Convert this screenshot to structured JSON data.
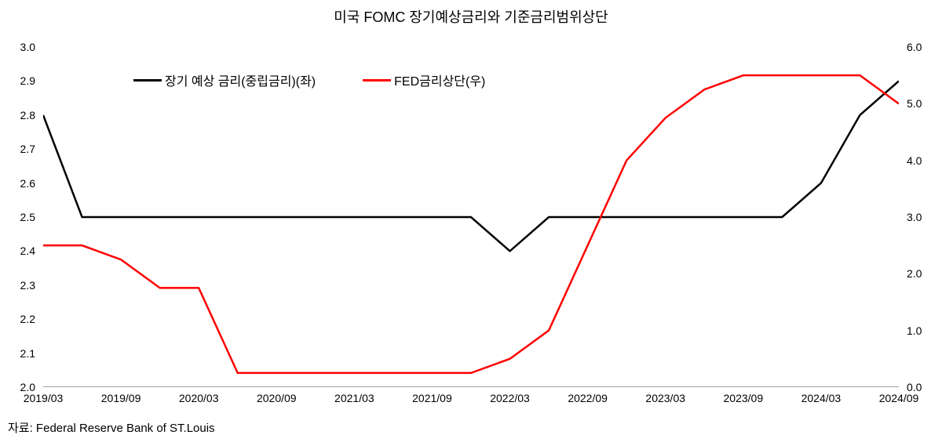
{
  "title": "미국 FOMC 장기예상금리와 기준금리범위상단",
  "source": "자료: Federal Reserve Bank of ST.Louis",
  "chart": {
    "type": "line",
    "background_color": "#ffffff",
    "axis_color": "#808080",
    "text_color": "#000000",
    "title_fontsize": 18,
    "label_fontsize": 14,
    "legend_fontsize": 16,
    "line_width": 2.5,
    "legend": {
      "position": "top-left-inset",
      "items": [
        {
          "label": "장기 예상 금리(중립금리)(좌)",
          "color": "#000000"
        },
        {
          "label": "FED금리상단(우)",
          "color": "#ff0000"
        }
      ]
    },
    "x": {
      "labels": [
        "2019/03",
        "2019/09",
        "2020/03",
        "2020/09",
        "2021/03",
        "2021/09",
        "2022/03",
        "2022/09",
        "2023/03",
        "2023/09",
        "2024/03",
        "2024/09"
      ]
    },
    "yLeft": {
      "min": 2.0,
      "max": 3.0,
      "ticks": [
        2.0,
        2.1,
        2.2,
        2.3,
        2.4,
        2.5,
        2.6,
        2.7,
        2.8,
        2.9,
        3.0
      ]
    },
    "yRight": {
      "min": 0.0,
      "max": 6.0,
      "ticks": [
        0.0,
        1.0,
        2.0,
        3.0,
        4.0,
        5.0,
        6.0
      ]
    },
    "series": [
      {
        "name": "장기 예상 금리(중립금리)(좌)",
        "axis": "left",
        "color": "#000000",
        "points": [
          {
            "x": 0,
            "y": 2.8
          },
          {
            "x": 1,
            "y": 2.5
          },
          {
            "x": 2,
            "y": 2.5
          },
          {
            "x": 3,
            "y": 2.5
          },
          {
            "x": 4,
            "y": 2.5
          },
          {
            "x": 5,
            "y": 2.5
          },
          {
            "x": 6,
            "y": 2.5
          },
          {
            "x": 7,
            "y": 2.5
          },
          {
            "x": 8,
            "y": 2.5
          },
          {
            "x": 9,
            "y": 2.5
          },
          {
            "x": 10,
            "y": 2.5
          },
          {
            "x": 11,
            "y": 2.5
          },
          {
            "x": 12,
            "y": 2.4
          },
          {
            "x": 13,
            "y": 2.5
          },
          {
            "x": 14,
            "y": 2.5
          },
          {
            "x": 15,
            "y": 2.5
          },
          {
            "x": 16,
            "y": 2.5
          },
          {
            "x": 17,
            "y": 2.5
          },
          {
            "x": 18,
            "y": 2.5
          },
          {
            "x": 19,
            "y": 2.5
          },
          {
            "x": 20,
            "y": 2.6
          },
          {
            "x": 21,
            "y": 2.8
          },
          {
            "x": 22,
            "y": 2.9
          }
        ]
      },
      {
        "name": "FED금리상단(우)",
        "axis": "right",
        "color": "#ff0000",
        "points": [
          {
            "x": 0,
            "y": 2.5
          },
          {
            "x": 1,
            "y": 2.5
          },
          {
            "x": 2,
            "y": 2.25
          },
          {
            "x": 3,
            "y": 1.75
          },
          {
            "x": 4,
            "y": 1.75
          },
          {
            "x": 5,
            "y": 0.25
          },
          {
            "x": 6,
            "y": 0.25
          },
          {
            "x": 7,
            "y": 0.25
          },
          {
            "x": 8,
            "y": 0.25
          },
          {
            "x": 9,
            "y": 0.25
          },
          {
            "x": 10,
            "y": 0.25
          },
          {
            "x": 11,
            "y": 0.25
          },
          {
            "x": 12,
            "y": 0.5
          },
          {
            "x": 13,
            "y": 1.0
          },
          {
            "x": 14,
            "y": 2.5
          },
          {
            "x": 15,
            "y": 4.0
          },
          {
            "x": 16,
            "y": 4.75
          },
          {
            "x": 17,
            "y": 5.25
          },
          {
            "x": 18,
            "y": 5.5
          },
          {
            "x": 19,
            "y": 5.5
          },
          {
            "x": 20,
            "y": 5.5
          },
          {
            "x": 21,
            "y": 5.5
          },
          {
            "x": 22,
            "y": 5.0
          }
        ]
      }
    ],
    "x_point_count": 23
  }
}
